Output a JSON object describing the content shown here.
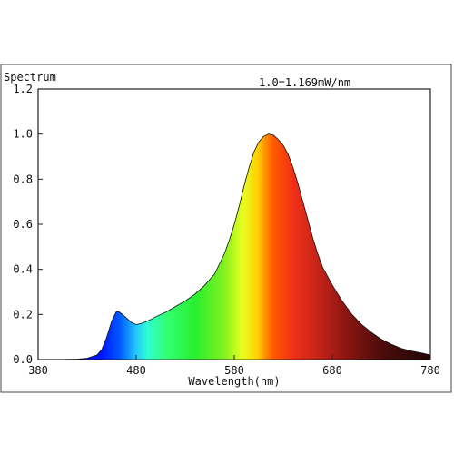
{
  "chart_data": {
    "type": "area",
    "ylabel": "Spectrum",
    "xlabel": "Wavelength(nm)",
    "annotation": "1.0=1.169mW/nm",
    "xlim": [
      380,
      780
    ],
    "ylim": [
      0,
      1.2
    ],
    "xticks": [
      "380",
      "480",
      "580",
      "680",
      "780"
    ],
    "yticks": [
      "0.0",
      "0.2",
      "0.4",
      "0.6",
      "0.8",
      "1.0",
      "1.2"
    ],
    "grid": false,
    "legend": "none",
    "x": [
      380,
      400,
      420,
      430,
      440,
      445,
      450,
      455,
      460,
      463,
      466,
      470,
      475,
      480,
      485,
      490,
      495,
      500,
      510,
      520,
      530,
      540,
      550,
      560,
      570,
      575,
      580,
      585,
      590,
      595,
      600,
      605,
      610,
      615,
      620,
      625,
      630,
      635,
      640,
      645,
      650,
      655,
      660,
      665,
      670,
      680,
      690,
      700,
      710,
      720,
      730,
      740,
      750,
      760,
      770,
      780
    ],
    "y": [
      0.0,
      0.0,
      0.002,
      0.006,
      0.02,
      0.045,
      0.1,
      0.17,
      0.215,
      0.21,
      0.2,
      0.185,
      0.165,
      0.155,
      0.16,
      0.168,
      0.178,
      0.19,
      0.21,
      0.235,
      0.26,
      0.29,
      0.33,
      0.38,
      0.47,
      0.53,
      0.6,
      0.68,
      0.77,
      0.85,
      0.92,
      0.965,
      0.99,
      1.0,
      0.995,
      0.975,
      0.95,
      0.91,
      0.85,
      0.78,
      0.7,
      0.62,
      0.54,
      0.47,
      0.41,
      0.33,
      0.26,
      0.2,
      0.155,
      0.12,
      0.09,
      0.068,
      0.05,
      0.038,
      0.03,
      0.02
    ]
  }
}
